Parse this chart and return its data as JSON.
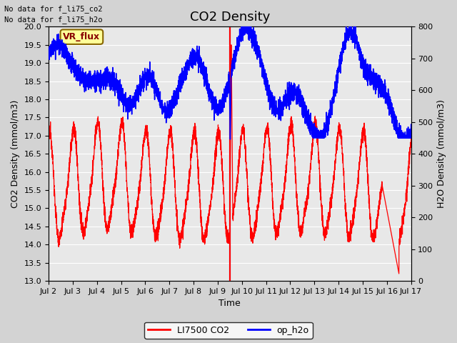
{
  "title": "CO2 Density",
  "xlabel": "Time",
  "ylabel_left": "CO2 Density (mmol/m3)",
  "ylabel_right": "H2O Density (mmol/m3)",
  "ylim_left": [
    13.0,
    20.0
  ],
  "ylim_right": [
    0,
    800
  ],
  "xtick_labels": [
    "Jul 2",
    "Jul 3",
    "Jul 4",
    "Jul 5",
    "Jul 6",
    "Jul 7",
    "Jul 8",
    "Jul 9",
    "Jul 10",
    "Jul 11",
    "Jul 12",
    "Jul 13",
    "Jul 14",
    "Jul 15",
    "Jul 16",
    "Jul 17"
  ],
  "note1": "No data for f_li75_co2",
  "note2": "No data for f_li75_h2o",
  "vr_flux_label": "VR_flux",
  "legend_co2": "LI7500 CO2",
  "legend_h2o": "op_h2o",
  "co2_color": "#ff0000",
  "h2o_color": "#0000ff",
  "bg_color": "#d3d3d3",
  "plot_bg_color": "#e8e8e8",
  "vr_flux_bg": "#ffff99",
  "vr_flux_fg": "#880000",
  "title_fontsize": 13,
  "axis_fontsize": 9,
  "tick_fontsize": 8,
  "n_days": 15,
  "pts_per_day": 288,
  "spike_day": 7.5,
  "co2_base": 15.5,
  "co2_amp": 1.4,
  "h2o_base_mmol": 620,
  "h2o_amp_mmol": 100
}
